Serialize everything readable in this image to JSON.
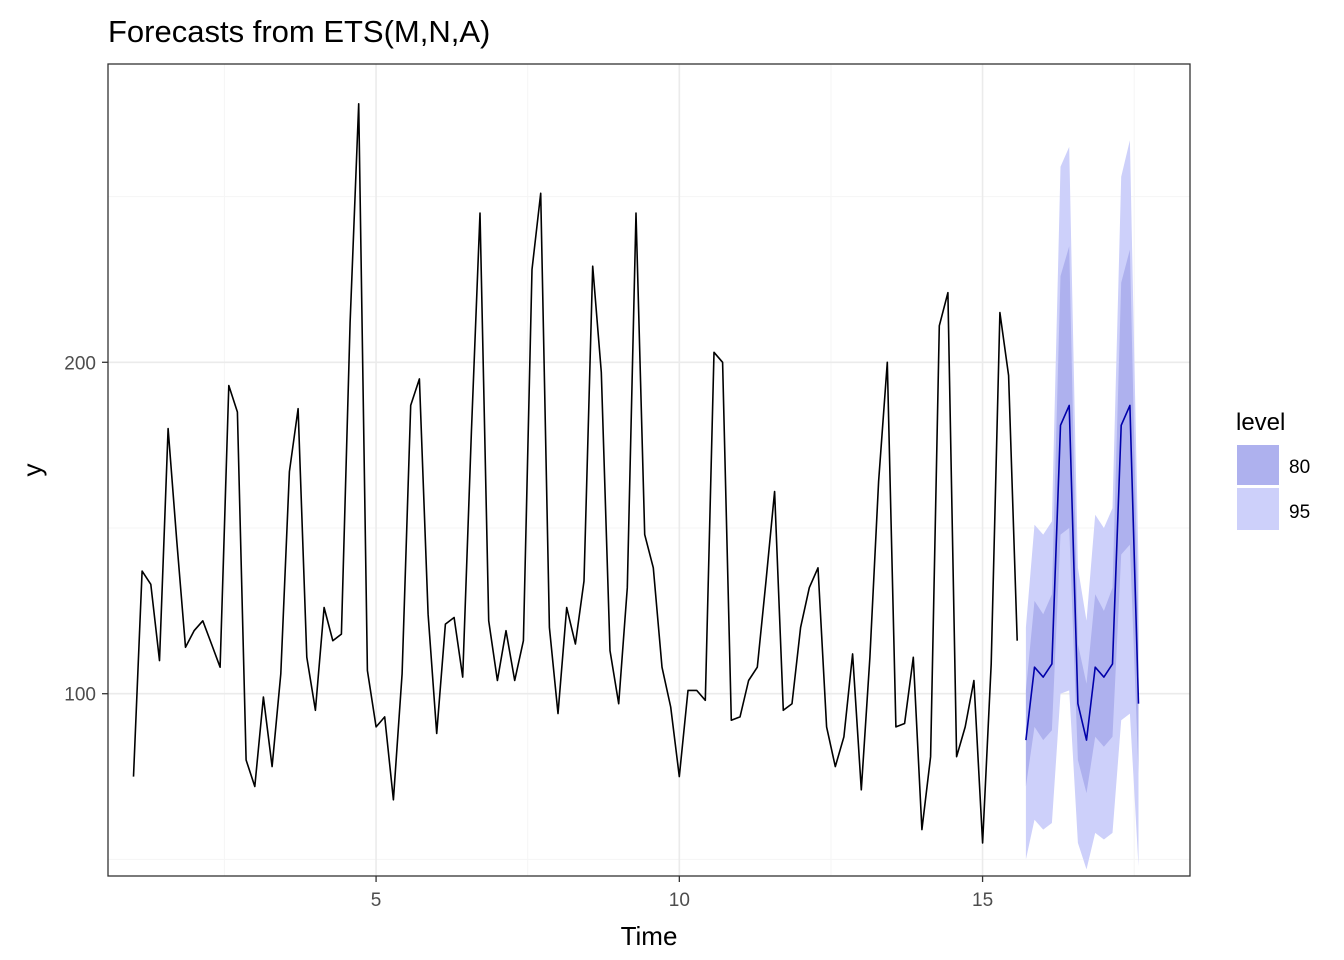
{
  "chart_data": {
    "type": "line",
    "title": "Forecasts from ETS(M,N,A)",
    "xlabel": "Time",
    "ylabel": "y",
    "xlim": [
      0.58,
      18.42
    ],
    "ylim": [
      45,
      290
    ],
    "x_ticks": [
      5,
      10,
      15
    ],
    "x_tick_labels": [
      "5",
      "10",
      "15"
    ],
    "x_minor_ticks": [
      2.5,
      7.5,
      12.5,
      17.5
    ],
    "y_ticks": [
      100,
      200
    ],
    "y_tick_labels": [
      "100",
      "200"
    ],
    "y_minor_ticks": [
      50,
      150,
      250
    ],
    "grid": true,
    "legend_position": "right",
    "colors": {
      "observed": "#000000",
      "forecast": "#0000aa",
      "band80": "#aeb1ee",
      "band95": "#cdd0fa",
      "panel_border": "#333333",
      "grid_major": "#ebebeb",
      "grid_minor": "#f5f5f5"
    },
    "legend": {
      "title": "level",
      "items": [
        {
          "label": "80",
          "color": "#aeb1ee"
        },
        {
          "label": "95",
          "color": "#cdd0fa"
        }
      ]
    },
    "observed": {
      "start": 1,
      "frequency": 7,
      "values": [
        75,
        137,
        133,
        110,
        180,
        146,
        114,
        119,
        122,
        115,
        108,
        193,
        185,
        80,
        72,
        99,
        78,
        106,
        167,
        186,
        111,
        95,
        126,
        116,
        118,
        212,
        278,
        107,
        90,
        93,
        68,
        106,
        187,
        195,
        124,
        88,
        121,
        123,
        105,
        179,
        245,
        122,
        104,
        119,
        104,
        116,
        228,
        251,
        120,
        94,
        126,
        115,
        134,
        229,
        197,
        113,
        97,
        132,
        245,
        148,
        138,
        108,
        96,
        75,
        101,
        101,
        98,
        203,
        200,
        92,
        93,
        104,
        108,
        134,
        161,
        95,
        97,
        120,
        132,
        138,
        90,
        78,
        87,
        112,
        71,
        111,
        164,
        200,
        90,
        91,
        111,
        59,
        81,
        211,
        221,
        81,
        90,
        104,
        55,
        109,
        215,
        196,
        116
      ]
    },
    "forecast": {
      "start": 15.714,
      "frequency": 7,
      "mean": [
        86,
        108,
        105,
        109,
        181,
        187,
        97,
        86,
        108,
        105,
        109,
        181,
        187,
        97
      ],
      "lo80": [
        72,
        90,
        86,
        89,
        148,
        150,
        80,
        70,
        87,
        84,
        87,
        142,
        145,
        76
      ],
      "hi80": [
        101,
        128,
        124,
        130,
        226,
        235,
        115,
        103,
        130,
        125,
        132,
        224,
        234,
        119
      ],
      "lo95": [
        50,
        62,
        59,
        61,
        100,
        101,
        55,
        47,
        58,
        56,
        58,
        92,
        94,
        48
      ],
      "hi95": [
        120,
        151,
        148,
        152,
        259,
        265,
        138,
        122,
        154,
        150,
        156,
        256,
        267,
        139
      ]
    }
  }
}
